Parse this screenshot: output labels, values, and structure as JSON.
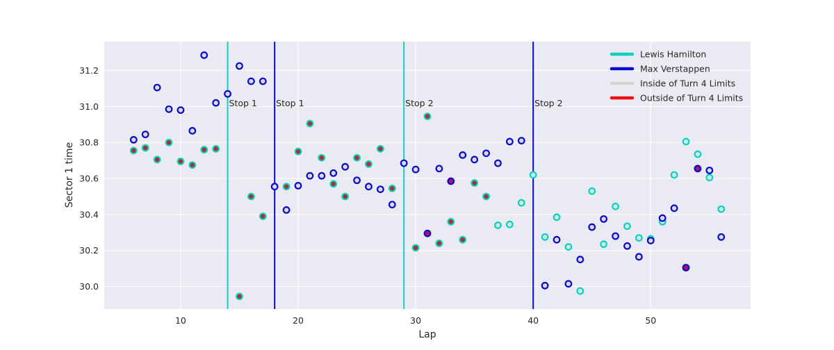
{
  "chart_data": {
    "type": "scatter",
    "title": "",
    "xlabel": "Lap",
    "ylabel": "Sector 1 time",
    "xlim": [
      3.5,
      58.5
    ],
    "ylim": [
      29.875,
      31.36
    ],
    "xticks": [
      10,
      20,
      30,
      40,
      50
    ],
    "yticks": [
      30.0,
      30.2,
      30.4,
      30.6,
      30.8,
      31.0,
      31.2
    ],
    "grid": true,
    "legend_position": "top-right",
    "colors": {
      "hamilton": "#10cfbf",
      "verstappen": "#0a0ac8",
      "inside": "#d3d3d3",
      "outside": "#e81010",
      "background": "#eaeaf2",
      "grid": "#ffffff"
    },
    "legend": [
      {
        "label": "Lewis Hamilton",
        "color": "#10cfbf"
      },
      {
        "label": "Max Verstappen",
        "color": "#0a0ac8"
      },
      {
        "label": "Inside of Turn 4 Limits",
        "color": "#d3d3d3"
      },
      {
        "label": "Outside of Turn 4 Limits",
        "color": "#e81010"
      }
    ],
    "pit_stops": [
      {
        "lap": 14,
        "driver": "hamilton",
        "label": "Stop 1"
      },
      {
        "lap": 18,
        "driver": "verstappen",
        "label": "Stop 1"
      },
      {
        "lap": 29,
        "driver": "hamilton",
        "label": "Stop 2"
      },
      {
        "lap": 40,
        "driver": "verstappen",
        "label": "Stop 2"
      }
    ],
    "series": [
      {
        "name": "Lewis Hamilton",
        "points": [
          {
            "x": 6,
            "y": 30.755,
            "limits": "outside"
          },
          {
            "x": 7,
            "y": 30.77,
            "limits": "outside"
          },
          {
            "x": 8,
            "y": 30.705,
            "limits": "outside"
          },
          {
            "x": 9,
            "y": 30.8,
            "limits": "outside"
          },
          {
            "x": 10,
            "y": 30.695,
            "limits": "outside"
          },
          {
            "x": 11,
            "y": 30.675,
            "limits": "outside"
          },
          {
            "x": 12,
            "y": 30.76,
            "limits": "outside"
          },
          {
            "x": 13,
            "y": 30.765,
            "limits": "outside"
          },
          {
            "x": 15,
            "y": 29.945,
            "limits": "outside"
          },
          {
            "x": 16,
            "y": 30.5,
            "limits": "outside"
          },
          {
            "x": 17,
            "y": 30.39,
            "limits": "outside"
          },
          {
            "x": 19,
            "y": 30.555,
            "limits": "outside"
          },
          {
            "x": 20,
            "y": 30.75,
            "limits": "outside"
          },
          {
            "x": 21,
            "y": 30.905,
            "limits": "outside"
          },
          {
            "x": 22,
            "y": 30.715,
            "limits": "outside"
          },
          {
            "x": 23,
            "y": 30.57,
            "limits": "outside"
          },
          {
            "x": 24,
            "y": 30.5,
            "limits": "outside"
          },
          {
            "x": 25,
            "y": 30.715,
            "limits": "outside"
          },
          {
            "x": 26,
            "y": 30.68,
            "limits": "outside"
          },
          {
            "x": 27,
            "y": 30.765,
            "limits": "outside"
          },
          {
            "x": 28,
            "y": 30.545,
            "limits": "outside"
          },
          {
            "x": 30,
            "y": 30.215,
            "limits": "outside"
          },
          {
            "x": 31,
            "y": 30.945,
            "limits": "outside"
          },
          {
            "x": 32,
            "y": 30.24,
            "limits": "outside"
          },
          {
            "x": 33,
            "y": 30.36,
            "limits": "outside"
          },
          {
            "x": 34,
            "y": 30.26,
            "limits": "outside"
          },
          {
            "x": 35,
            "y": 30.575,
            "limits": "outside"
          },
          {
            "x": 36,
            "y": 30.5,
            "limits": "outside"
          },
          {
            "x": 37,
            "y": 30.34,
            "limits": "inside"
          },
          {
            "x": 38,
            "y": 30.345,
            "limits": "inside"
          },
          {
            "x": 39,
            "y": 30.465,
            "limits": "inside"
          },
          {
            "x": 40,
            "y": 30.62,
            "limits": "inside"
          },
          {
            "x": 41,
            "y": 30.275,
            "limits": "inside"
          },
          {
            "x": 42,
            "y": 30.385,
            "limits": "inside"
          },
          {
            "x": 43,
            "y": 30.22,
            "limits": "inside"
          },
          {
            "x": 44,
            "y": 29.975,
            "limits": "inside"
          },
          {
            "x": 45,
            "y": 30.53,
            "limits": "inside"
          },
          {
            "x": 46,
            "y": 30.235,
            "limits": "inside"
          },
          {
            "x": 47,
            "y": 30.445,
            "limits": "inside"
          },
          {
            "x": 48,
            "y": 30.335,
            "limits": "inside"
          },
          {
            "x": 49,
            "y": 30.27,
            "limits": "inside"
          },
          {
            "x": 50,
            "y": 30.265,
            "limits": "inside"
          },
          {
            "x": 51,
            "y": 30.36,
            "limits": "inside"
          },
          {
            "x": 52,
            "y": 30.62,
            "limits": "inside"
          },
          {
            "x": 53,
            "y": 30.805,
            "limits": "inside"
          },
          {
            "x": 54,
            "y": 30.735,
            "limits": "inside"
          },
          {
            "x": 55,
            "y": 30.605,
            "limits": "inside"
          },
          {
            "x": 56,
            "y": 30.43,
            "limits": "inside"
          }
        ]
      },
      {
        "name": "Max Verstappen",
        "points": [
          {
            "x": 6,
            "y": 30.815,
            "limits": "inside"
          },
          {
            "x": 7,
            "y": 30.845,
            "limits": "inside"
          },
          {
            "x": 8,
            "y": 31.105,
            "limits": "inside"
          },
          {
            "x": 9,
            "y": 30.985,
            "limits": "inside"
          },
          {
            "x": 10,
            "y": 30.98,
            "limits": "inside"
          },
          {
            "x": 11,
            "y": 30.865,
            "limits": "inside"
          },
          {
            "x": 12,
            "y": 31.285,
            "limits": "inside"
          },
          {
            "x": 13,
            "y": 31.02,
            "limits": "inside"
          },
          {
            "x": 14,
            "y": 31.07,
            "limits": "inside"
          },
          {
            "x": 15,
            "y": 31.225,
            "limits": "inside"
          },
          {
            "x": 16,
            "y": 31.14,
            "limits": "inside"
          },
          {
            "x": 17,
            "y": 31.14,
            "limits": "inside"
          },
          {
            "x": 18,
            "y": 30.555,
            "limits": "inside"
          },
          {
            "x": 19,
            "y": 30.425,
            "limits": "inside"
          },
          {
            "x": 20,
            "y": 30.56,
            "limits": "inside"
          },
          {
            "x": 21,
            "y": 30.615,
            "limits": "inside"
          },
          {
            "x": 22,
            "y": 30.615,
            "limits": "inside"
          },
          {
            "x": 23,
            "y": 30.63,
            "limits": "inside"
          },
          {
            "x": 24,
            "y": 30.665,
            "limits": "inside"
          },
          {
            "x": 25,
            "y": 30.59,
            "limits": "inside"
          },
          {
            "x": 26,
            "y": 30.555,
            "limits": "inside"
          },
          {
            "x": 27,
            "y": 30.54,
            "limits": "inside"
          },
          {
            "x": 28,
            "y": 30.455,
            "limits": "inside"
          },
          {
            "x": 29,
            "y": 30.685,
            "limits": "inside"
          },
          {
            "x": 30,
            "y": 30.65,
            "limits": "inside"
          },
          {
            "x": 31,
            "y": 30.295,
            "limits": "outside"
          },
          {
            "x": 32,
            "y": 30.655,
            "limits": "inside"
          },
          {
            "x": 33,
            "y": 30.585,
            "limits": "outside"
          },
          {
            "x": 34,
            "y": 30.73,
            "limits": "inside"
          },
          {
            "x": 35,
            "y": 30.705,
            "limits": "inside"
          },
          {
            "x": 36,
            "y": 30.74,
            "limits": "inside"
          },
          {
            "x": 37,
            "y": 30.685,
            "limits": "inside"
          },
          {
            "x": 38,
            "y": 30.805,
            "limits": "inside"
          },
          {
            "x": 39,
            "y": 30.81,
            "limits": "inside"
          },
          {
            "x": 41,
            "y": 30.005,
            "limits": "inside"
          },
          {
            "x": 42,
            "y": 30.26,
            "limits": "inside"
          },
          {
            "x": 43,
            "y": 30.015,
            "limits": "inside"
          },
          {
            "x": 44,
            "y": 30.15,
            "limits": "inside"
          },
          {
            "x": 45,
            "y": 30.33,
            "limits": "inside"
          },
          {
            "x": 46,
            "y": 30.375,
            "limits": "inside"
          },
          {
            "x": 47,
            "y": 30.28,
            "limits": "inside"
          },
          {
            "x": 48,
            "y": 30.225,
            "limits": "inside"
          },
          {
            "x": 49,
            "y": 30.165,
            "limits": "inside"
          },
          {
            "x": 50,
            "y": 30.255,
            "limits": "inside"
          },
          {
            "x": 51,
            "y": 30.38,
            "limits": "inside"
          },
          {
            "x": 52,
            "y": 30.435,
            "limits": "inside"
          },
          {
            "x": 53,
            "y": 30.105,
            "limits": "outside"
          },
          {
            "x": 54,
            "y": 30.655,
            "limits": "outside"
          },
          {
            "x": 55,
            "y": 30.645,
            "limits": "inside"
          },
          {
            "x": 56,
            "y": 30.275,
            "limits": "inside"
          }
        ]
      }
    ]
  }
}
